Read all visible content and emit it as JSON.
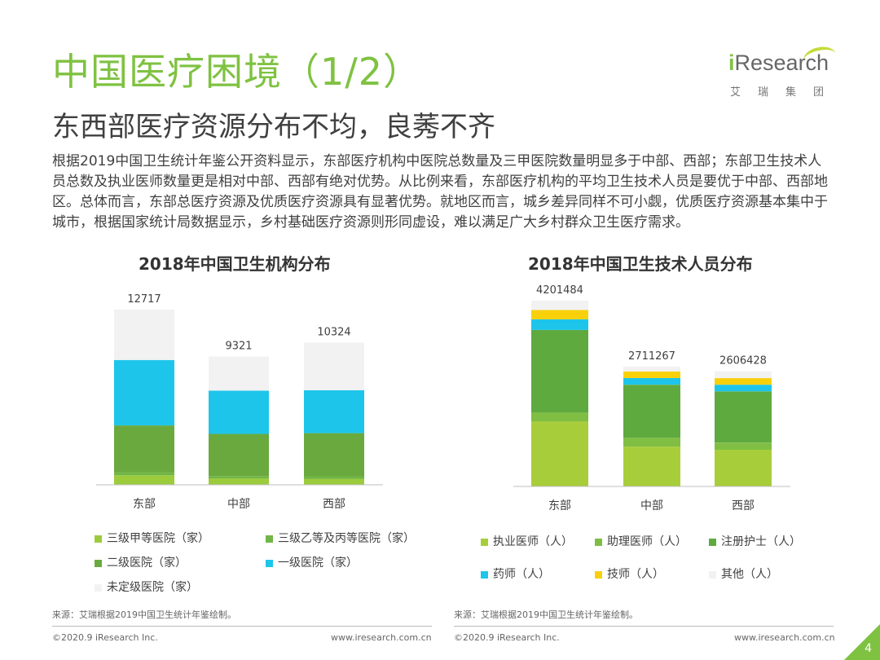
{
  "header": {
    "title": "中国医疗困境（1/2）",
    "subtitle": "东西部医疗资源分布不均，良莠不齐"
  },
  "logo": {
    "brand_i": "i",
    "brand_rest": "Research",
    "cn": "艾瑞集团"
  },
  "paragraph": "根据2019中国卫生统计年鉴公开资料显示，东部医疗机构中医院总数量及三甲医院数量明显多于中部、西部；东部卫生技术人员总数及执业医师数量更是相对中部、西部有绝对优势。从比例来看，东部医疗机构的平均卫生技术人员是要优于中部、西部地区。总体而言，东部总医疗资源及优质医疗资源具有显著优势。就地区而言，城乡差异同样不可小觑，优质医疗资源基本集中于城市，根据国家统计局数据显示，乡村基础医疗资源则形同虚设，难以满足广大乡村群众卫生医疗需求。",
  "chart_data": [
    {
      "type": "bar",
      "stacked": true,
      "title": "2018年中国卫生机构分布",
      "categories": [
        "东部",
        "中部",
        "西部"
      ],
      "totals": [
        12717,
        9321,
        10324
      ],
      "series": [
        {
          "name": "三级甲等医院（家）",
          "color": "#9ccc3c",
          "values": [
            690,
            460,
            420
          ]
        },
        {
          "name": "三级乙等及丙等医院（家）",
          "color": "#72b646",
          "values": [
            220,
            140,
            200
          ]
        },
        {
          "name": "二级医院（家）",
          "color": "#6aa93e",
          "values": [
            3400,
            3100,
            3130
          ]
        },
        {
          "name": "一级医院（家）",
          "color": "#1ec5eb",
          "values": [
            4750,
            3140,
            3120
          ]
        },
        {
          "name": "未定级医院（家）",
          "color": "#f2f2f2",
          "values": [
            3657,
            2481,
            3454
          ]
        }
      ]
    },
    {
      "type": "bar",
      "stacked": true,
      "title": "2018年中国卫生技术人员分布",
      "categories": [
        "东部",
        "中部",
        "西部"
      ],
      "totals": [
        4201484,
        2711267,
        2606428
      ],
      "series": [
        {
          "name": "执业医师（人）",
          "color": "#a8cd3a",
          "values": [
            1470000,
            900000,
            830000
          ]
        },
        {
          "name": "助理医师（人）",
          "color": "#7fbe43",
          "values": [
            200000,
            200000,
            160000
          ]
        },
        {
          "name": "注册护士（人）",
          "color": "#5faa3f",
          "values": [
            1870000,
            1200000,
            1160000
          ]
        },
        {
          "name": "药师（人）",
          "color": "#1ec5eb",
          "values": [
            240000,
            150000,
            150000
          ]
        },
        {
          "name": "技师（人）",
          "color": "#f8d10b",
          "values": [
            210000,
            150000,
            150000
          ]
        },
        {
          "name": "其他（人）",
          "color": "#f2f2f2",
          "values": [
            211484,
            111267,
            156428
          ]
        }
      ]
    }
  ],
  "sources": {
    "left": "来源：艾瑞根据2019中国卫生统计年鉴绘制。",
    "right": "来源：艾瑞根据2019中国卫生统计年鉴绘制。"
  },
  "footer": {
    "copyright": "©2020.9 iResearch Inc.",
    "website": "www.iresearch.com.cn"
  },
  "page_number": "4"
}
